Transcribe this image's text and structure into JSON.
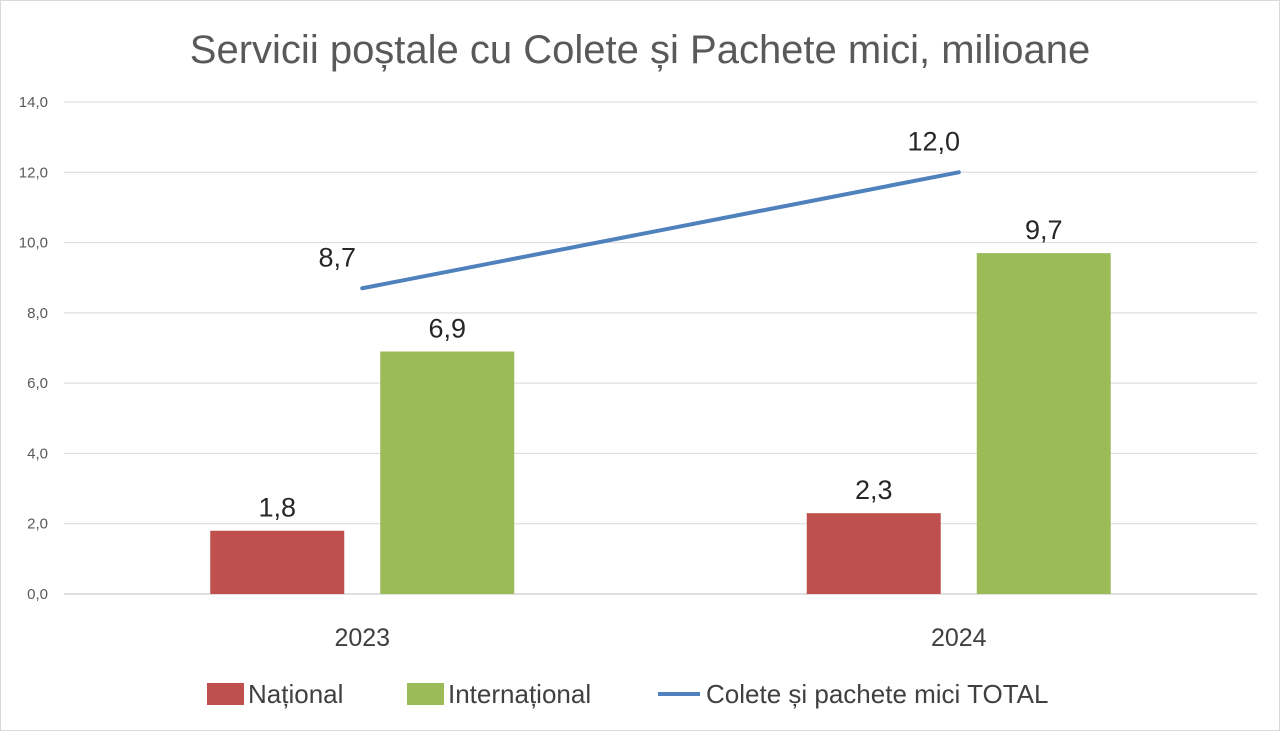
{
  "chart_data": {
    "type": "bar",
    "title": "Servicii poștale cu Colete și Pachete mici, milioane",
    "categories": [
      "2023",
      "2024"
    ],
    "series": [
      {
        "name": "Național",
        "kind": "bar",
        "color": "#c0504d",
        "values": [
          1.8,
          2.3
        ],
        "labels": [
          "1,8",
          "2,3"
        ]
      },
      {
        "name": "Internațional",
        "kind": "bar",
        "color": "#9bbb59",
        "values": [
          6.9,
          9.7
        ],
        "labels": [
          "6,9",
          "9,7"
        ]
      },
      {
        "name": "Colete și pachete mici TOTAL",
        "kind": "line",
        "color": "#4f81bd",
        "values": [
          8.7,
          12.0
        ],
        "labels": [
          "8,7",
          "12,0"
        ]
      }
    ],
    "ylim": [
      0,
      14
    ],
    "yticks": [
      "0,0",
      "2,0",
      "4,0",
      "6,0",
      "8,0",
      "10,0",
      "12,0",
      "14,0"
    ],
    "grid": true,
    "legend_position": "bottom"
  }
}
